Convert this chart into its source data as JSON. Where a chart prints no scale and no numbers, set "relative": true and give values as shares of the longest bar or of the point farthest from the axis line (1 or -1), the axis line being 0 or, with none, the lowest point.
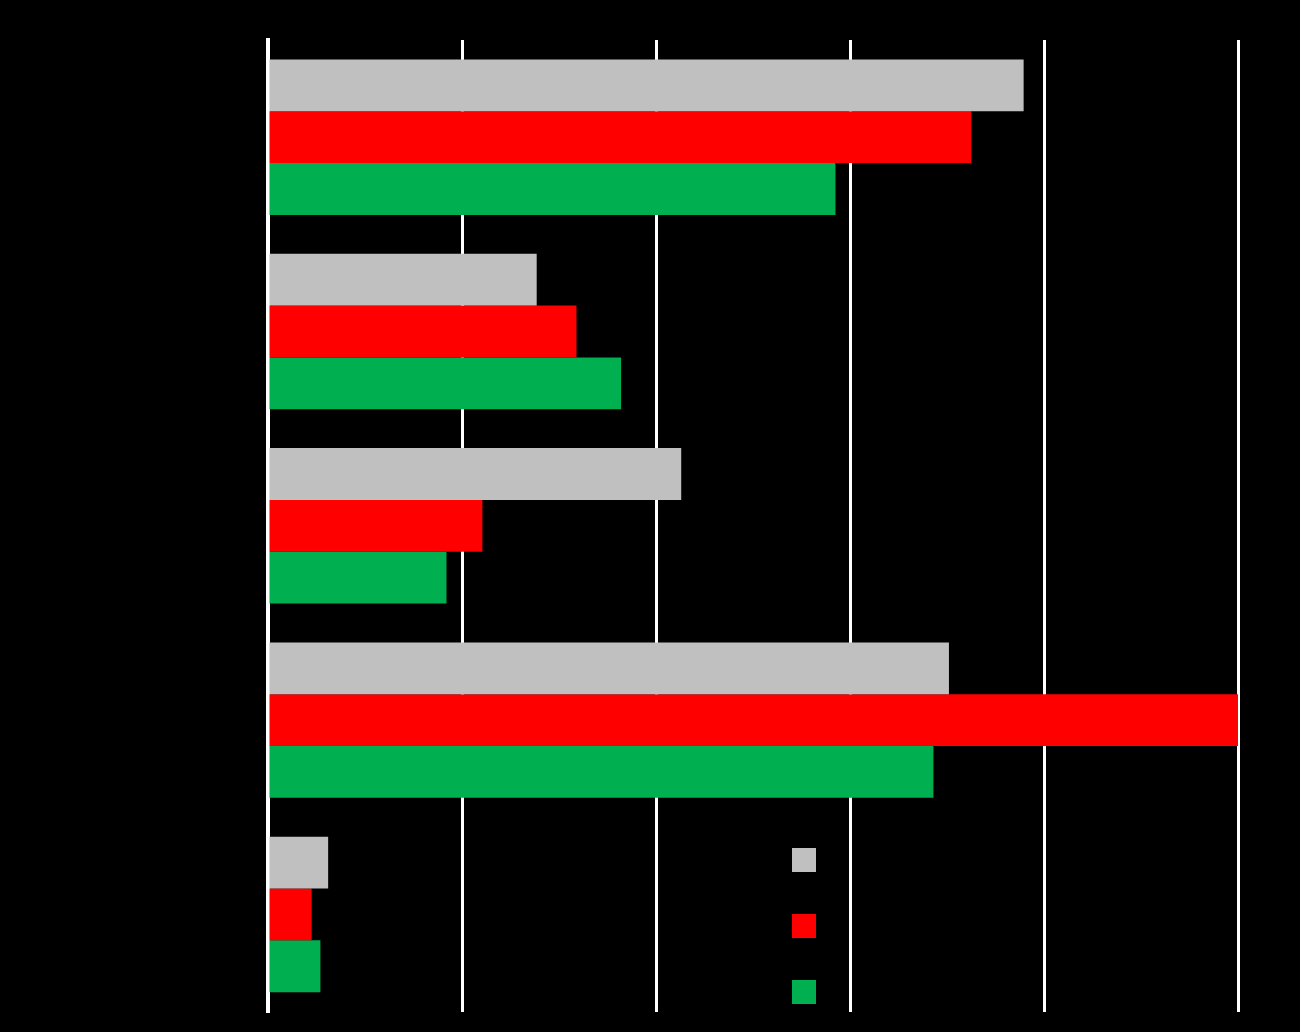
{
  "chart_data": {
    "type": "bar",
    "orientation": "horizontal",
    "relative": true,
    "categories": [
      null,
      null,
      null,
      null,
      null
    ],
    "series": [
      {
        "color": "#c0c0c0",
        "values": [
          0.779,
          0.277,
          0.426,
          0.702,
          0.062
        ]
      },
      {
        "color": "#ff0000",
        "values": [
          0.725,
          0.318,
          0.221,
          1,
          0.045
        ]
      },
      {
        "color": "#00b050",
        "values": [
          0.585,
          0.364,
          0.184,
          0.686,
          0.054
        ]
      }
    ],
    "grid": "x"
  }
}
